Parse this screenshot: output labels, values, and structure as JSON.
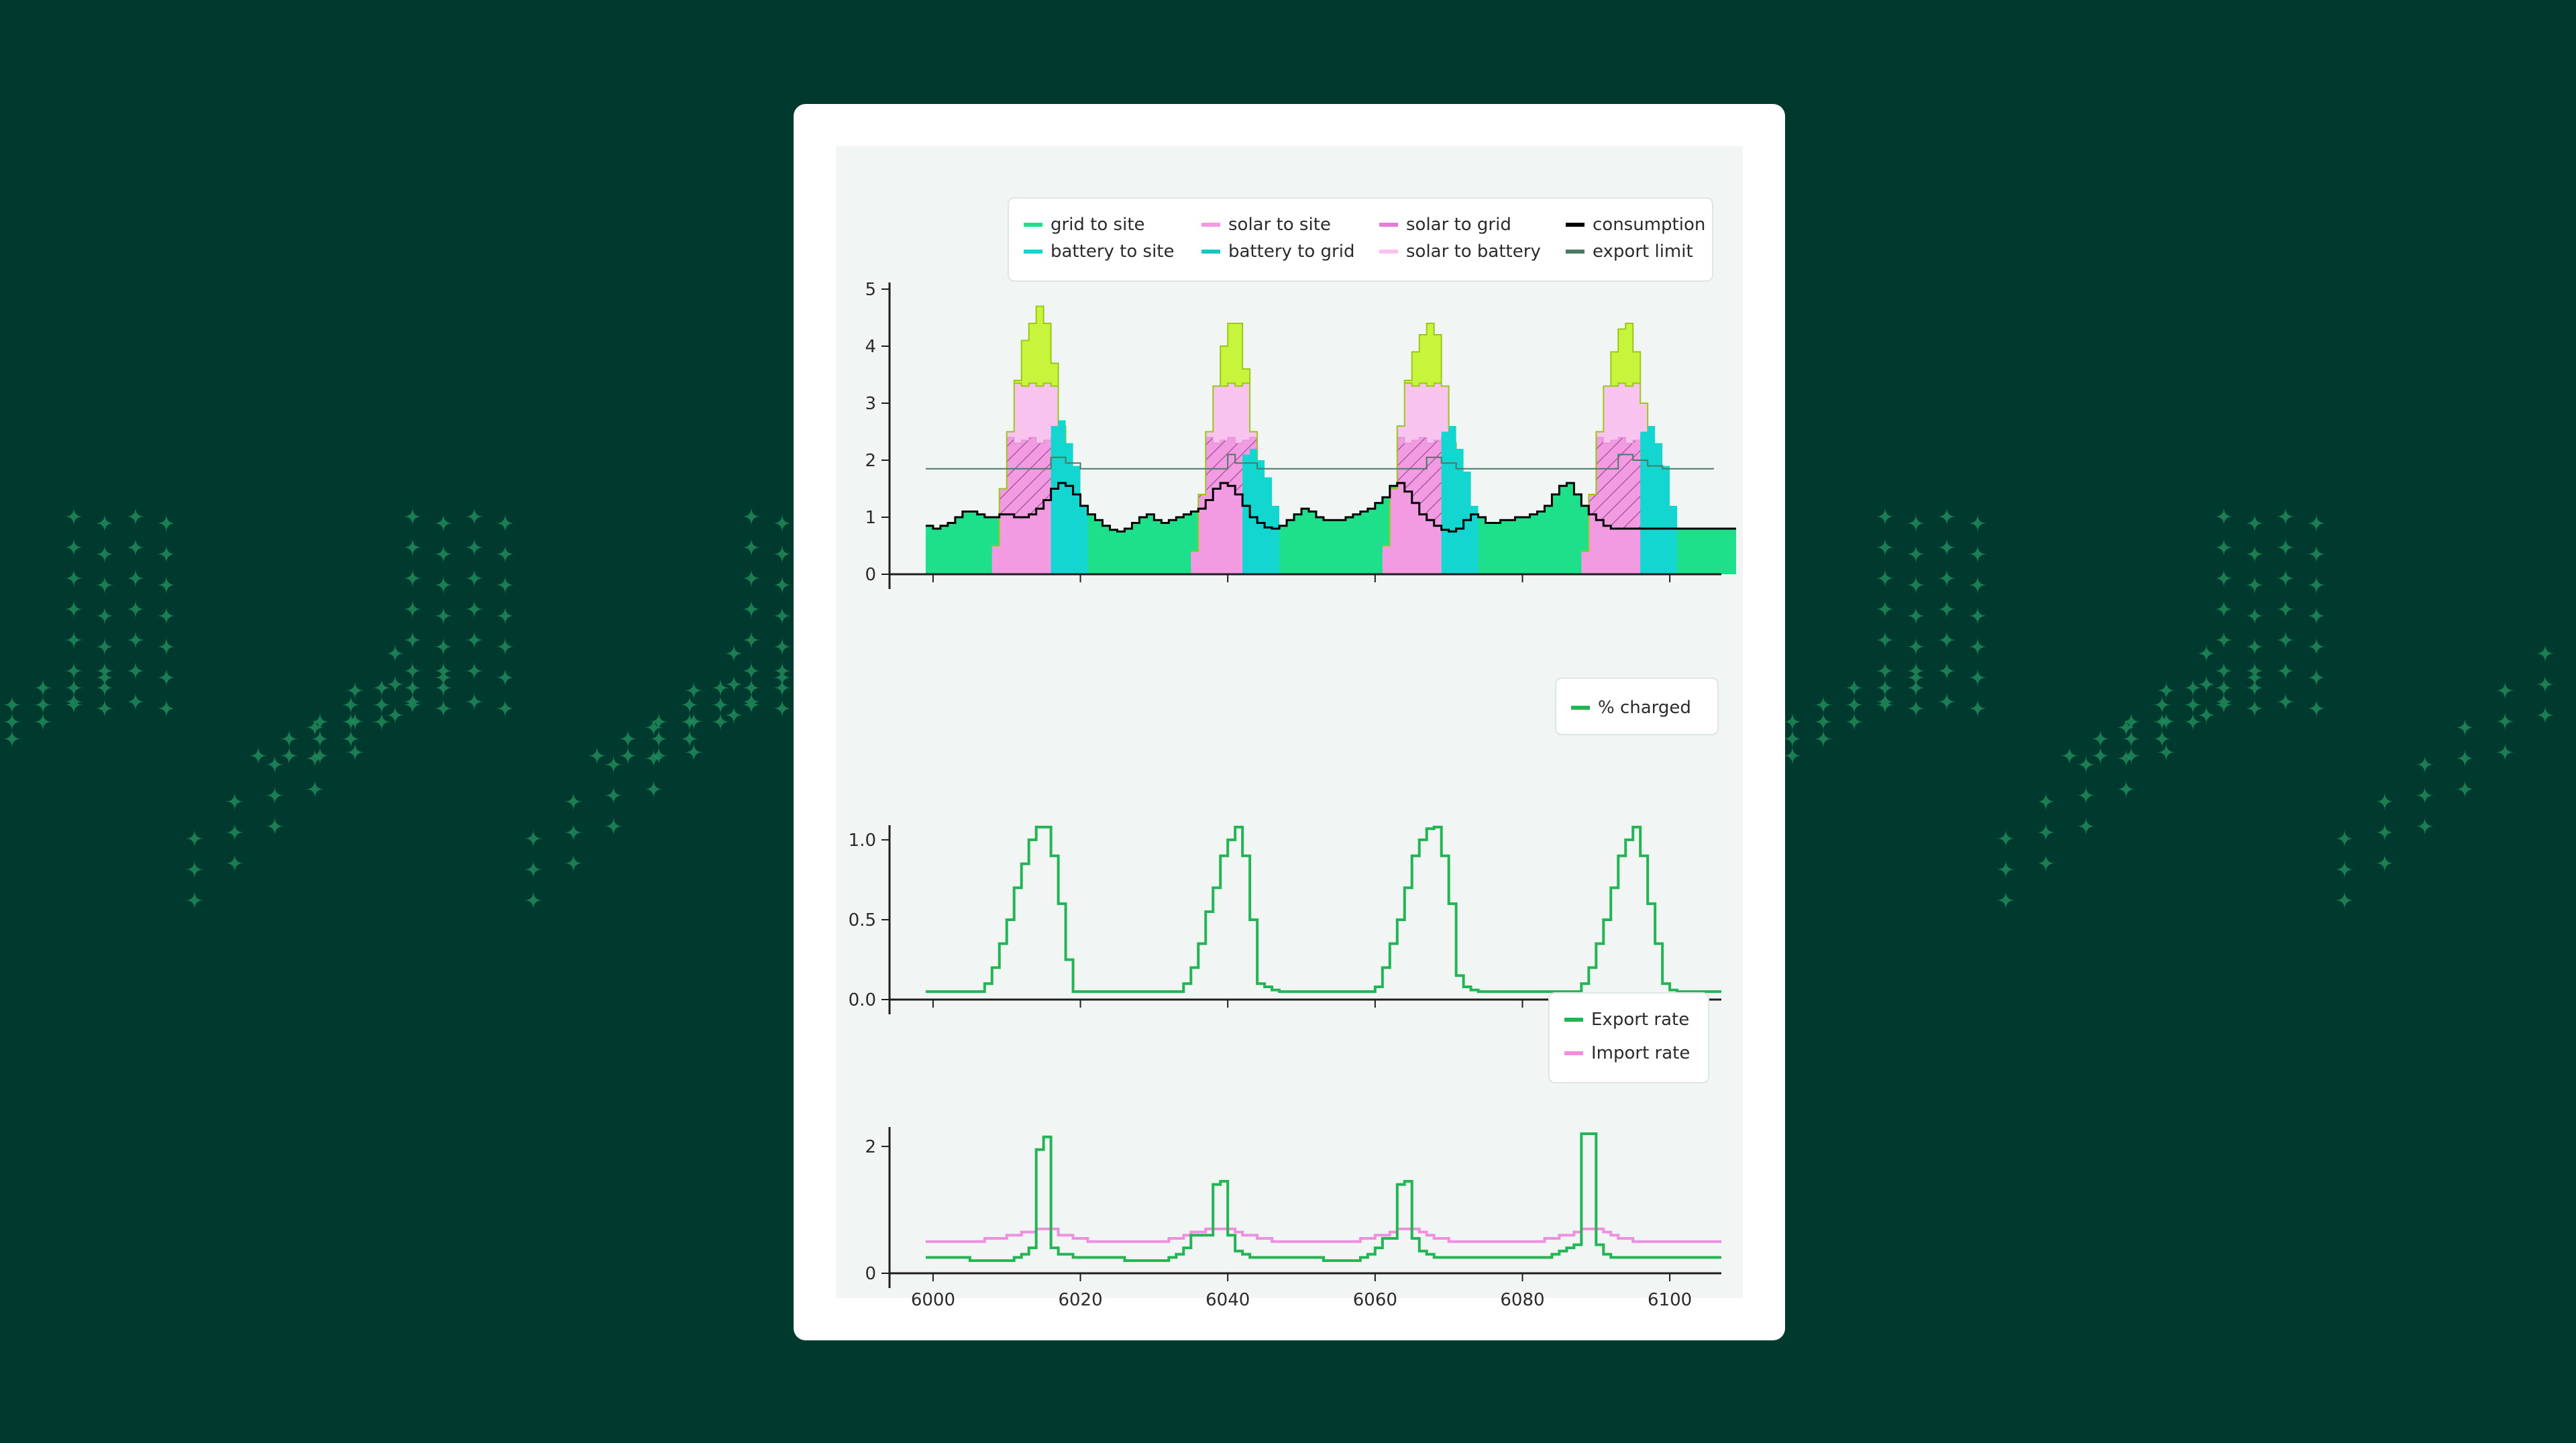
{
  "colors": {
    "background": "#003a2e",
    "pattern": "#1f8a5a",
    "card": "#ffffff",
    "figure": "#f1f6f4"
  },
  "chart_data": [
    {
      "type": "area",
      "title": "",
      "xlabel": "",
      "ylabel": "",
      "xlim": [
        5995,
        6107
      ],
      "ylim": [
        0,
        5
      ],
      "yticks": [
        0,
        1,
        2,
        3,
        4,
        5
      ],
      "grid": false,
      "legend_position": "top-right",
      "legend": [
        {
          "label": "grid to site",
          "color": "#1fe08a"
        },
        {
          "label": "battery to site",
          "color": "#12d6cf"
        },
        {
          "label": "solar to site",
          "color": "#f29be3"
        },
        {
          "label": "battery to grid",
          "color": "#12c8c0"
        },
        {
          "label": "solar to grid",
          "color": "#e47bd6"
        },
        {
          "label": "solar to battery",
          "color": "#f8c3ee"
        },
        {
          "label": "consumption",
          "color": "#000000"
        },
        {
          "label": "export limit",
          "color": "#4a7a66"
        }
      ],
      "solar_color": "#c7f53b",
      "x_start": 5999,
      "x_step": 1,
      "days": [
        {
          "start": 6008,
          "solar": [
            0.5,
            1.5,
            2.5,
            3.4,
            4.1,
            4.4,
            4.7,
            4.4,
            3.7,
            2.6,
            1.3,
            0.4
          ],
          "battery_discharge": [
            2.6,
            2.7,
            2.3,
            1.9,
            1.2
          ]
        },
        {
          "start": 6035,
          "solar": [
            0.4,
            1.4,
            2.5,
            3.3,
            4.0,
            4.4,
            4.4,
            3.6,
            2.5,
            1.2,
            0.3
          ],
          "battery_discharge": [
            2.1,
            2.2,
            2.0,
            1.7,
            1.2
          ]
        },
        {
          "start": 6061,
          "solar": [
            0.5,
            1.5,
            2.6,
            3.4,
            3.9,
            4.2,
            4.4,
            4.2,
            3.3,
            2.3,
            1.3,
            0.3
          ],
          "battery_discharge": [
            2.5,
            2.6,
            2.2,
            1.8,
            1.2
          ]
        },
        {
          "start": 6088,
          "solar": [
            0.4,
            1.4,
            2.5,
            3.3,
            3.9,
            4.3,
            4.4,
            3.9,
            3.0,
            2.0,
            0.9,
            0.3
          ],
          "battery_discharge": [
            2.5,
            2.6,
            2.3,
            1.9,
            1.2
          ]
        }
      ],
      "consumption": [
        0.85,
        0.8,
        0.85,
        0.9,
        1.0,
        1.1,
        1.1,
        1.05,
        1.0,
        1.0,
        1.05,
        1.05,
        1.0,
        1.0,
        1.05,
        1.15,
        1.3,
        1.5,
        1.6,
        1.55,
        1.4,
        1.2,
        1.05,
        0.95,
        0.85,
        0.78,
        0.75,
        0.8,
        0.9,
        1.0,
        1.05,
        0.95,
        0.9,
        0.95,
        1.0,
        1.05,
        1.1,
        1.15,
        1.3,
        1.5,
        1.6,
        1.55,
        1.4,
        1.2,
        1.0,
        0.9,
        0.82,
        0.8,
        0.85,
        0.95,
        1.05,
        1.15,
        1.1,
        1.0,
        0.95,
        0.95,
        0.95,
        1.0,
        1.05,
        1.1,
        1.15,
        1.25,
        1.35,
        1.55,
        1.6,
        1.45,
        1.25,
        1.05,
        0.95,
        0.85,
        0.78,
        0.75,
        0.8,
        0.95,
        1.05,
        1.0,
        0.9,
        0.9,
        0.95,
        0.95,
        1.0,
        1.0,
        1.05,
        1.1,
        1.2,
        1.4,
        1.55,
        1.6,
        1.4,
        1.2,
        1.05,
        0.95,
        0.85,
        0.8,
        0.8,
        0.8,
        0.8,
        0.8,
        0.8,
        0.8,
        0.8,
        0.8,
        0.8,
        0.8,
        0.8,
        0.8,
        0.8,
        0.8,
        0.8,
        0.8
      ],
      "export_limit": {
        "x": [
          5999,
          6014,
          6016,
          6018,
          6020,
          6025,
          6040,
          6041,
          6044,
          6046,
          6051,
          6067,
          6069,
          6071,
          6073,
          6078,
          6093,
          6095,
          6097,
          6099,
          6106
        ],
        "y": [
          1.85,
          1.85,
          2.05,
          1.95,
          1.85,
          1.85,
          2.1,
          1.95,
          1.85,
          1.85,
          1.85,
          2.05,
          1.95,
          1.85,
          1.85,
          1.85,
          2.1,
          2.0,
          1.9,
          1.85,
          1.85
        ]
      }
    },
    {
      "type": "line",
      "title": "",
      "xlabel": "",
      "ylabel": "",
      "xlim": [
        5995,
        6107
      ],
      "ylim": [
        0,
        1.05
      ],
      "yticks": [
        "0.0",
        "0.5",
        "1.0"
      ],
      "grid": false,
      "legend_position": "top-right",
      "series": [
        {
          "name": "% charged",
          "color": "#22b554",
          "values": [
            0.05,
            0.05,
            0.05,
            0.05,
            0.05,
            0.05,
            0.05,
            0.05,
            0.1,
            0.2,
            0.35,
            0.5,
            0.7,
            0.85,
            1.0,
            1.08,
            1.08,
            0.9,
            0.6,
            0.25,
            0.05,
            0.05,
            0.05,
            0.05,
            0.05,
            0.05,
            0.05,
            0.05,
            0.05,
            0.05,
            0.05,
            0.05,
            0.05,
            0.05,
            0.05,
            0.1,
            0.2,
            0.35,
            0.55,
            0.7,
            0.9,
            1.0,
            1.08,
            0.9,
            0.5,
            0.1,
            0.08,
            0.06,
            0.05,
            0.05,
            0.05,
            0.05,
            0.05,
            0.05,
            0.05,
            0.05,
            0.05,
            0.05,
            0.05,
            0.05,
            0.05,
            0.08,
            0.2,
            0.35,
            0.5,
            0.7,
            0.9,
            1.0,
            1.07,
            1.08,
            0.9,
            0.6,
            0.15,
            0.08,
            0.06,
            0.05,
            0.05,
            0.05,
            0.05,
            0.05,
            0.05,
            0.05,
            0.05,
            0.05,
            0.05,
            0.05,
            0.05,
            0.05,
            0.05,
            0.1,
            0.2,
            0.35,
            0.5,
            0.7,
            0.9,
            1.0,
            1.08,
            0.9,
            0.6,
            0.35,
            0.1,
            0.06,
            0.05,
            0.05,
            0.05,
            0.05,
            0.05,
            0.05
          ]
        }
      ]
    },
    {
      "type": "line",
      "title": "",
      "xlabel": "",
      "ylabel": "",
      "xlim": [
        5995,
        6107
      ],
      "ylim": [
        0,
        2.2
      ],
      "yticks": [
        "0",
        "2"
      ],
      "xticks": [
        "6000",
        "6020",
        "6040",
        "6060",
        "6080",
        "6100"
      ],
      "grid": false,
      "legend_position": "top-right",
      "series": [
        {
          "name": "Export rate",
          "color": "#22b554",
          "values": [
            0.25,
            0.25,
            0.25,
            0.25,
            0.25,
            0.25,
            0.2,
            0.2,
            0.2,
            0.2,
            0.2,
            0.2,
            0.25,
            0.3,
            0.4,
            1.95,
            2.15,
            0.4,
            0.3,
            0.3,
            0.25,
            0.25,
            0.25,
            0.25,
            0.25,
            0.25,
            0.25,
            0.2,
            0.2,
            0.2,
            0.2,
            0.2,
            0.2,
            0.25,
            0.3,
            0.4,
            0.6,
            0.6,
            0.6,
            1.4,
            1.45,
            0.6,
            0.35,
            0.3,
            0.25,
            0.25,
            0.25,
            0.25,
            0.25,
            0.25,
            0.25,
            0.25,
            0.25,
            0.25,
            0.2,
            0.2,
            0.2,
            0.2,
            0.2,
            0.25,
            0.3,
            0.4,
            0.55,
            0.55,
            1.4,
            1.45,
            0.55,
            0.35,
            0.3,
            0.25,
            0.25,
            0.25,
            0.25,
            0.25,
            0.25,
            0.25,
            0.25,
            0.25,
            0.25,
            0.25,
            0.25,
            0.25,
            0.25,
            0.25,
            0.25,
            0.3,
            0.35,
            0.4,
            0.45,
            2.2,
            2.2,
            0.45,
            0.3,
            0.25,
            0.25,
            0.25,
            0.25,
            0.25,
            0.25,
            0.25,
            0.25,
            0.25,
            0.25,
            0.25,
            0.25,
            0.25,
            0.25,
            0.25
          ]
        },
        {
          "name": "Import rate",
          "color": "#ee8fe0",
          "values": [
            0.5,
            0.5,
            0.5,
            0.5,
            0.5,
            0.5,
            0.5,
            0.5,
            0.55,
            0.55,
            0.55,
            0.6,
            0.6,
            0.65,
            0.65,
            0.7,
            0.7,
            0.7,
            0.6,
            0.6,
            0.55,
            0.55,
            0.5,
            0.5,
            0.5,
            0.5,
            0.5,
            0.5,
            0.5,
            0.5,
            0.5,
            0.5,
            0.5,
            0.55,
            0.55,
            0.6,
            0.65,
            0.65,
            0.7,
            0.7,
            0.7,
            0.7,
            0.65,
            0.6,
            0.6,
            0.55,
            0.55,
            0.5,
            0.5,
            0.5,
            0.5,
            0.5,
            0.5,
            0.5,
            0.5,
            0.5,
            0.5,
            0.5,
            0.5,
            0.55,
            0.55,
            0.6,
            0.6,
            0.65,
            0.7,
            0.7,
            0.7,
            0.65,
            0.6,
            0.55,
            0.55,
            0.5,
            0.5,
            0.5,
            0.5,
            0.5,
            0.5,
            0.5,
            0.5,
            0.5,
            0.5,
            0.5,
            0.5,
            0.5,
            0.55,
            0.55,
            0.6,
            0.6,
            0.65,
            0.7,
            0.7,
            0.7,
            0.65,
            0.6,
            0.55,
            0.55,
            0.5,
            0.5,
            0.5,
            0.5,
            0.5,
            0.5,
            0.5,
            0.5,
            0.5,
            0.5,
            0.5,
            0.5
          ]
        }
      ]
    }
  ]
}
